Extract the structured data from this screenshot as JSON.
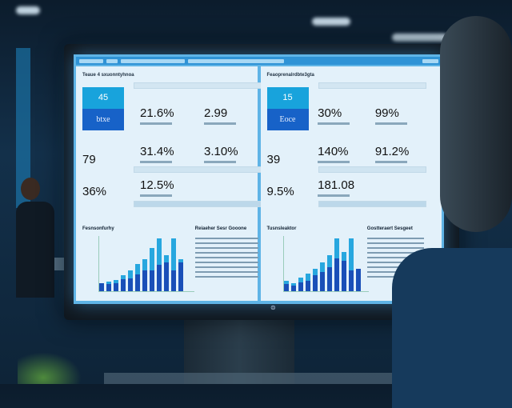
{
  "scene": {
    "accent": "#18a3dc",
    "dark_accent": "#1762c8"
  },
  "left_panel": {
    "title": "Teaue 4 sxuonntyhnoa",
    "tile_top": "45",
    "tile_bottom": "btxe",
    "kpi_a": "79",
    "kpi_b": "36%",
    "metrics": [
      "21.6%",
      "2.99",
      "31.4%",
      "3.10%",
      "12.5%"
    ],
    "chart_title": "Fesnsonfurhy",
    "side_title": "Reiaeher Sesr Gooone",
    "chart_data": {
      "type": "bar",
      "dark": [
        15,
        14,
        15,
        22,
        24,
        32,
        40,
        40,
        50,
        55,
        40,
        54
      ],
      "total": [
        15,
        18,
        22,
        30,
        40,
        52,
        60,
        82,
        100,
        68,
        100,
        60
      ]
    }
  },
  "right_panel": {
    "title": "Feaoprenalrdbte3gta",
    "tile_top": "15",
    "tile_bottom": "Eoce",
    "kpi_a": "39",
    "kpi_b": "9.5%",
    "metrics": [
      "30%",
      "99%",
      "140%",
      "91.2%",
      "181.08"
    ],
    "chart_title": "Tusnsleaktor",
    "side_title": "Gostteraert Sesgeet",
    "chart_data": {
      "type": "bar",
      "dark": [
        14,
        10,
        16,
        20,
        30,
        36,
        45,
        62,
        58,
        40,
        42
      ],
      "total": [
        20,
        15,
        26,
        33,
        42,
        55,
        68,
        100,
        75,
        100,
        42
      ]
    }
  }
}
